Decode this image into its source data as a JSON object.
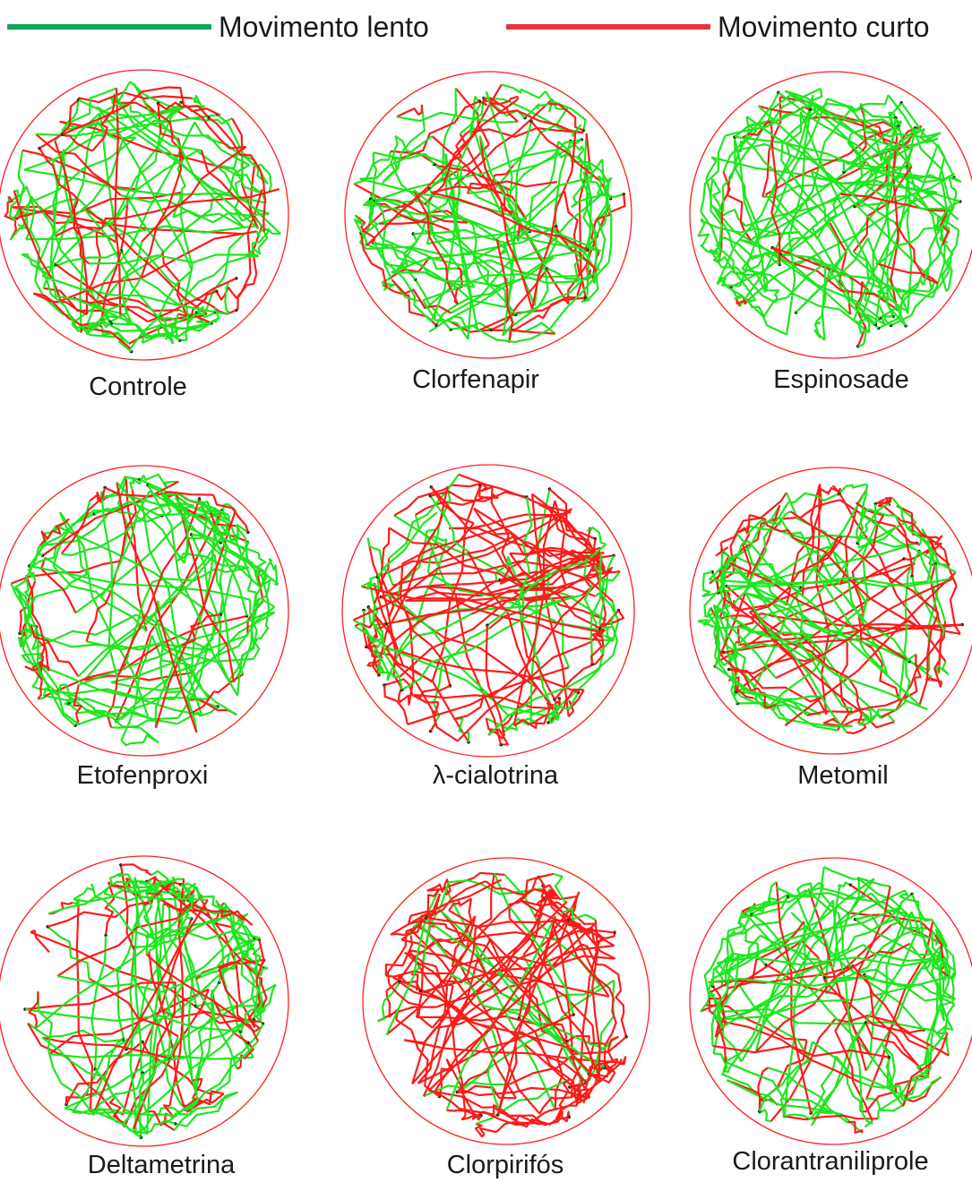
{
  "legend": {
    "items": [
      {
        "label": "Movimento lento",
        "color": "#12a35c"
      },
      {
        "label": "Movimento curto",
        "color": "#e8323c"
      }
    ]
  },
  "colors": {
    "arena_border": "#ff2020",
    "slow_track": "#1ee61e",
    "short_track": "#ff1a1a",
    "stop_marker": "#0a2a0a"
  },
  "arenas": [
    {
      "label": "Controle"
    },
    {
      "label": "Clorfenapir"
    },
    {
      "label": "Espinosade"
    },
    {
      "label": "Etofenproxi"
    },
    {
      "label": "λ-cialotrina"
    },
    {
      "label": "Metomil"
    },
    {
      "label": "Deltametrina"
    },
    {
      "label": "Clorpirifós"
    },
    {
      "label": "Clorantraniliprole"
    }
  ]
}
